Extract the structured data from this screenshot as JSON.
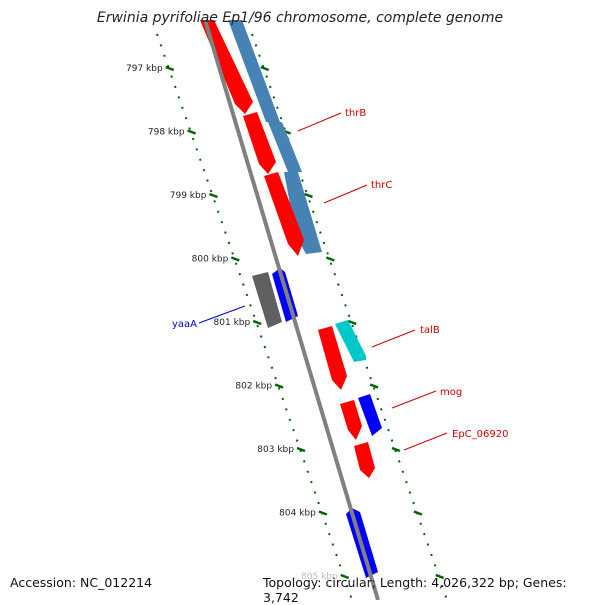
{
  "title": "Erwinia pyrifoliae Ep1/96 chromosome, complete genome",
  "footer": {
    "accession": "Accession: NC_012214",
    "summary": "Topology: circular; Length: 4,026,322 bp; Genes: 3,742"
  },
  "colors": {
    "forward_cds": "#ff0000",
    "reverse_cds": "#4682b4",
    "rna": "#0000ff",
    "other": "#00c8c8",
    "pseudo": "#606060",
    "backbone": "#808080",
    "ticks": "#006400"
  },
  "scale": {
    "unit": "kbp",
    "labels": [
      "797 kbp",
      "798 kbp",
      "799 kbp",
      "800 kbp",
      "801 kbp",
      "802 kbp",
      "803 kbp",
      "804 kbp",
      "805 kbp"
    ]
  },
  "gene_labels": [
    {
      "name": "thrB",
      "color": "#cc0000"
    },
    {
      "name": "thrC",
      "color": "#cc0000"
    },
    {
      "name": "yaaA",
      "color": "#0000cc"
    },
    {
      "name": "talB",
      "color": "#cc0000"
    },
    {
      "name": "mog",
      "color": "#cc0000"
    },
    {
      "name": "EpC_06920",
      "color": "#cc0000"
    }
  ]
}
